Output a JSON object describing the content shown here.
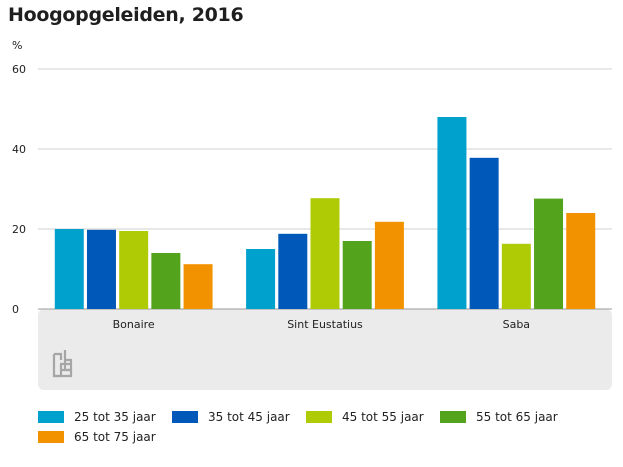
{
  "title": "Hoogopgeleiden, 2016",
  "unit_label": "%",
  "colors": {
    "plot_background": "#ebebeb",
    "grid": "#d2d2d2",
    "logo": "#a6a6a6"
  },
  "logo_icon": "cbs-logo-icon",
  "chart_data": {
    "type": "bar",
    "title": "Hoogopgeleiden, 2016",
    "ylabel": "%",
    "xlabel": "",
    "categories": [
      "Bonaire",
      "Sint Eustatius",
      "Saba"
    ],
    "ylim": [
      0,
      60
    ],
    "yticks": [
      0,
      20,
      40,
      60
    ],
    "grid": true,
    "legend_position": "bottom",
    "series": [
      {
        "name": "25 tot 35 jaar",
        "color": "#00a1cd",
        "values": [
          20,
          15,
          48
        ]
      },
      {
        "name": "35 tot 45 jaar",
        "color": "#0058b8",
        "values": [
          19.8,
          18.8,
          37.8
        ]
      },
      {
        "name": "45 tot 55 jaar",
        "color": "#afcb05",
        "values": [
          19.5,
          27.7,
          16.3
        ]
      },
      {
        "name": "55 tot 65 jaar",
        "color": "#53a31d",
        "values": [
          14,
          17,
          27.6
        ]
      },
      {
        "name": "65 tot 75 jaar",
        "color": "#f39200",
        "values": [
          11.2,
          21.8,
          24
        ]
      }
    ]
  }
}
